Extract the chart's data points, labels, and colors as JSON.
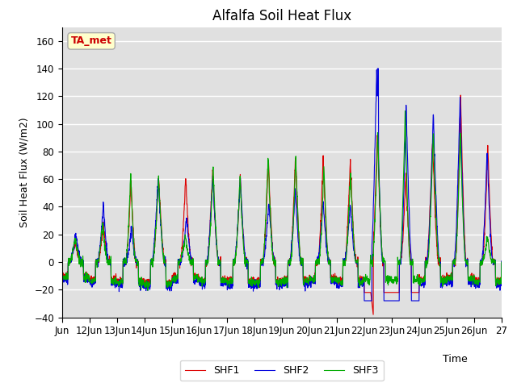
{
  "title": "Alfalfa Soil Heat Flux",
  "ylabel": "Soil Heat Flux (W/m2)",
  "xlabel": "Time",
  "ylim": [
    -40,
    170
  ],
  "yticks": [
    -40,
    -20,
    0,
    20,
    40,
    60,
    80,
    100,
    120,
    140,
    160
  ],
  "colors": {
    "SHF1": "#dd0000",
    "SHF2": "#0000dd",
    "SHF3": "#00aa00"
  },
  "annotation_text": "TA_met",
  "annotation_color": "#cc0000",
  "annotation_bg": "#ffffcc",
  "bg_color": "#e0e0e0",
  "grid_color": "white",
  "start_day": 11,
  "end_day": 27,
  "points_per_day": 144
}
